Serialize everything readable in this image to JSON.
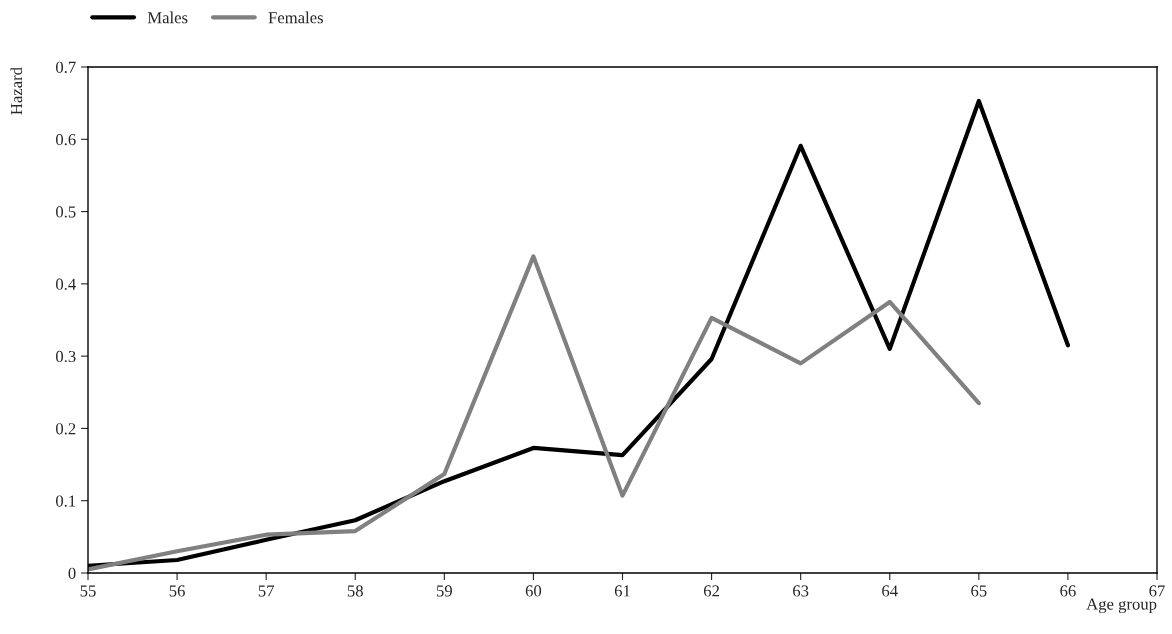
{
  "chart_data": {
    "type": "line",
    "xlabel": "Age group",
    "ylabel": "Hazard",
    "x": [
      55,
      56,
      57,
      58,
      59,
      60,
      61,
      62,
      63,
      64,
      65,
      66
    ],
    "series": [
      {
        "name": "Males",
        "color": "#000000",
        "values": [
          0.01,
          0.018,
          0.046,
          0.073,
          0.127,
          0.173,
          0.163,
          0.296,
          0.591,
          0.31,
          0.653,
          0.315
        ]
      },
      {
        "name": "Females",
        "color": "#808080",
        "values": [
          0.005,
          0.03,
          0.053,
          0.058,
          0.137,
          0.438,
          0.107,
          0.353,
          0.29,
          0.375,
          0.235,
          null
        ]
      }
    ],
    "xlim": [
      55,
      67
    ],
    "xticks": [
      55,
      56,
      57,
      58,
      59,
      60,
      61,
      62,
      63,
      64,
      65,
      66,
      67
    ],
    "ylim": [
      0,
      0.7
    ],
    "yticks": [
      0,
      0.1,
      0.2,
      0.3,
      0.4,
      0.5,
      0.6,
      0.7
    ],
    "grid": false,
    "legend": "top left",
    "marker": "none",
    "line_style": "solid"
  }
}
